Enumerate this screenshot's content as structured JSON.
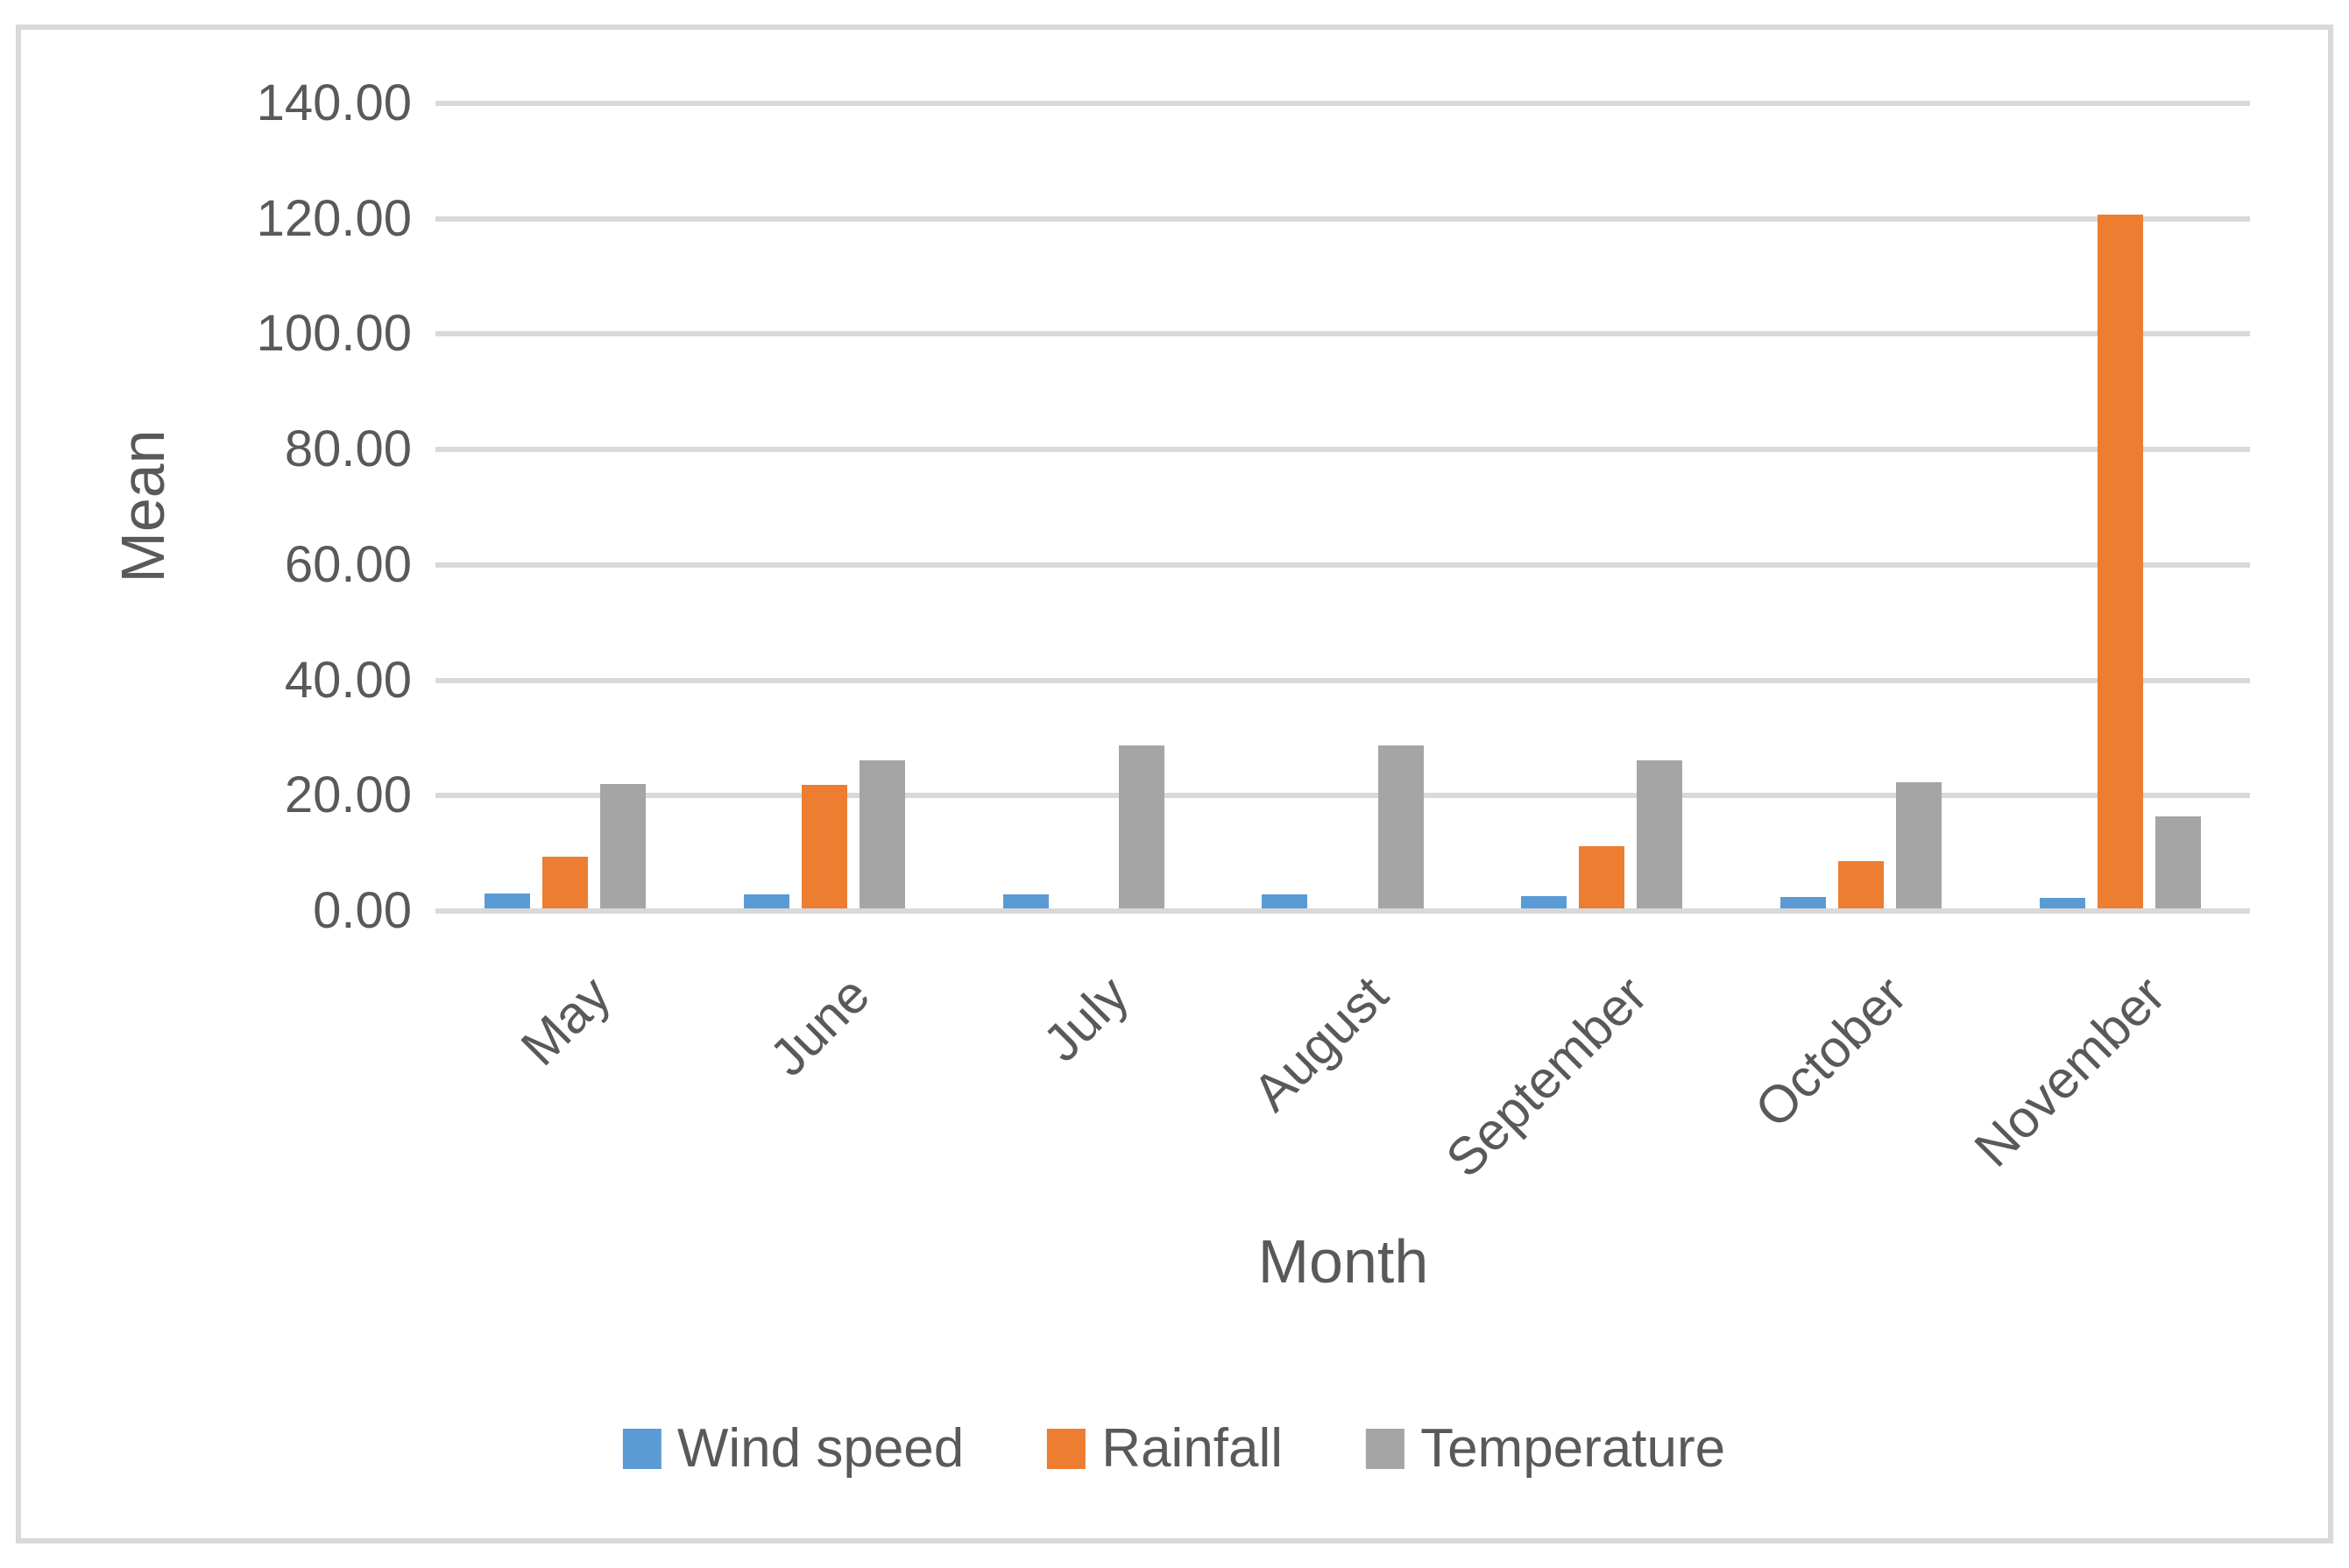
{
  "chart_data": {
    "type": "bar",
    "title": "",
    "categories": [
      "May",
      "June",
      "July",
      "August",
      "September",
      "October",
      "November"
    ],
    "series": [
      {
        "name": "Wind speed",
        "color": "#5B9BD5",
        "values": [
          2.6,
          2.5,
          2.4,
          2.4,
          2.2,
          2.0,
          1.8
        ]
      },
      {
        "name": "Rainfall",
        "color": "#ED7D31",
        "values": [
          8.9,
          21.4,
          0,
          0,
          10.8,
          8.2,
          120.3
        ]
      },
      {
        "name": "Temperature",
        "color": "#A5A5A5",
        "values": [
          21.6,
          25.7,
          28.2,
          28.2,
          25.6,
          21.8,
          16.0
        ]
      }
    ],
    "xlabel": "Month",
    "ylabel": "Mean",
    "ylim": [
      0,
      140
    ],
    "ytick_step": 20,
    "ytick_labels": [
      "0.00",
      "20.00",
      "40.00",
      "60.00",
      "80.00",
      "100.00",
      "120.00",
      "140.00"
    ],
    "grid": "horizontal",
    "legend_position": "bottom",
    "legend_labels": [
      "Wind speed",
      "Rainfall",
      "Temperature"
    ]
  },
  "colors": {
    "background": "#FFFFFF",
    "border": "#D9D9D9",
    "gridline": "#D9D9D9",
    "axis_text": "#595959",
    "wind_speed": "#5B9BD5",
    "rainfall": "#ED7D31",
    "temperature": "#A5A5A5"
  }
}
